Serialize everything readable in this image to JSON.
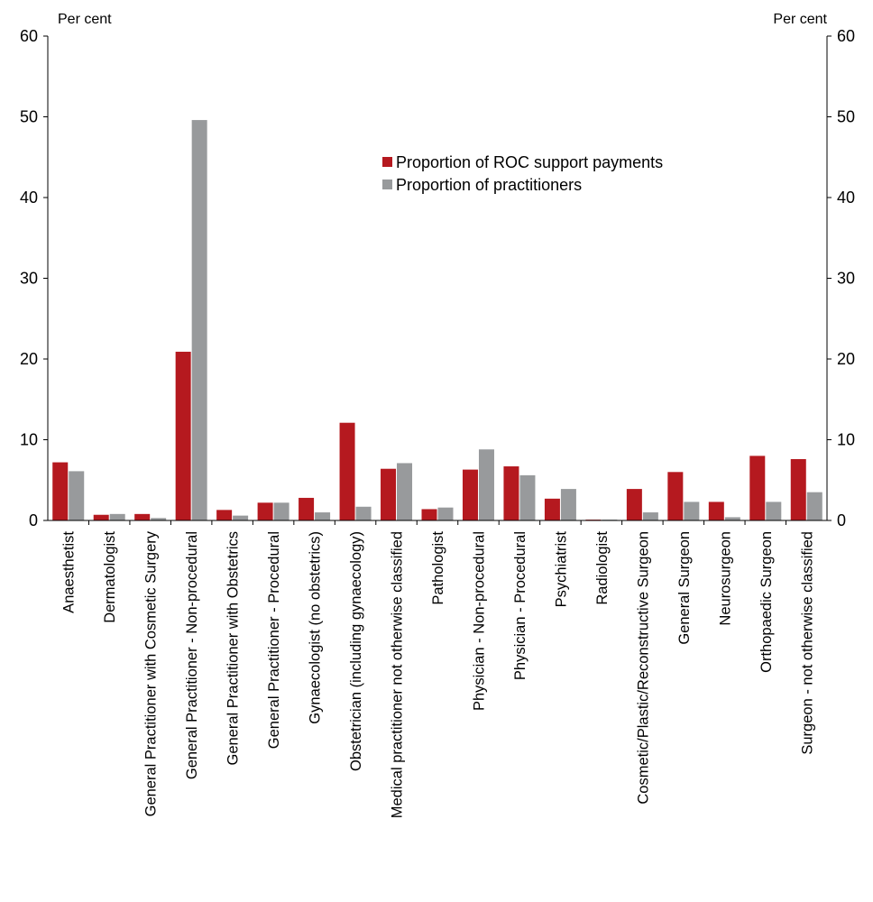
{
  "chart_data": {
    "type": "bar",
    "title": "",
    "title_color": "#c0141b",
    "y_unit_left": "Per cent",
    "y_unit_right": "Per cent",
    "ylim": [
      0,
      60
    ],
    "yticks": [
      "0",
      "10",
      "20",
      "30",
      "40",
      "50",
      "60"
    ],
    "grid": false,
    "legend_position": "upper-middle-right",
    "categories": [
      "Anaesthetist",
      "Dermatologist",
      "General Practitioner with Cosmetic Surgery",
      "General Practitioner - Non-procedural",
      "General Practitioner with Obstetrics",
      "General Practitioner - Procedural",
      "Gynaecologist (no obstetrics)",
      "Obstetrician (including gynaecology)",
      "Medical practitioner not otherwise classified",
      "Pathologist",
      "Physician - Non-procedural",
      "Physician - Procedural",
      "Psychiatrist",
      "Radiologist",
      "Cosmetic/Plastic/Reconstructive Surgeon",
      "General Surgeon",
      "Neurosurgeon",
      "Orthopaedic Surgeon",
      "Surgeon - not otherwise classified"
    ],
    "series": [
      {
        "name": "Proportion of ROC support payments",
        "color": "#b5191f",
        "values": [
          7.2,
          0.7,
          0.8,
          20.9,
          1.3,
          2.2,
          2.8,
          12.1,
          6.4,
          1.4,
          6.3,
          6.7,
          2.7,
          0.1,
          3.9,
          6.0,
          2.3,
          8.0,
          7.6
        ]
      },
      {
        "name": "Proportion of practitioners",
        "color": "#989a9c",
        "values": [
          6.1,
          0.8,
          0.3,
          49.6,
          0.6,
          2.2,
          1.0,
          1.7,
          7.1,
          1.6,
          8.8,
          5.6,
          3.9,
          0.1,
          1.0,
          2.3,
          0.4,
          2.3,
          3.5
        ]
      }
    ]
  }
}
